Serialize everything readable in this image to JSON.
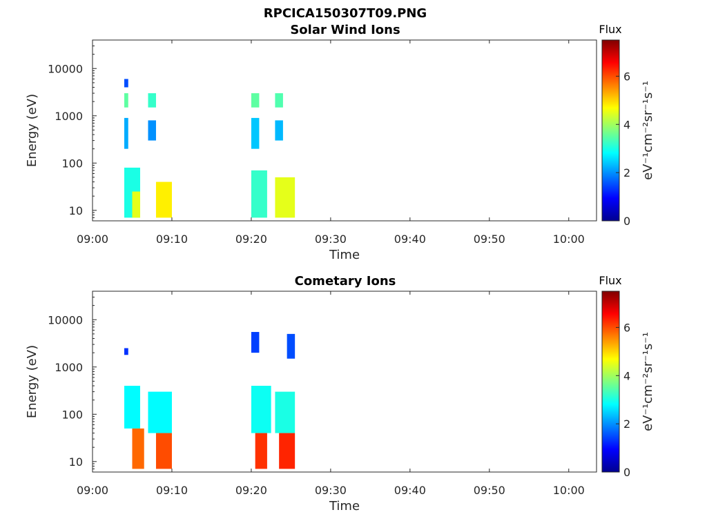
{
  "figure_title": "RPCICA150307T09.PNG",
  "chart_data": [
    {
      "type": "heatmap",
      "title": "Solar Wind Ions",
      "xlabel": "Time",
      "ylabel": "Energy (eV)",
      "x_ticks": [
        "09:00",
        "09:10",
        "09:20",
        "09:30",
        "09:40",
        "09:50",
        "10:00"
      ],
      "xlim_minutes": [
        0,
        63.5
      ],
      "y_scale": "log",
      "ylim": [
        6,
        40000
      ],
      "y_ticks": [
        "10",
        "100",
        "1000",
        "10000"
      ],
      "colorbar": {
        "title": "Flux",
        "unit_label": "eV⁻¹cm⁻²sr⁻¹s⁻¹",
        "range": [
          0,
          7.5
        ],
        "ticks": [
          "0",
          "2",
          "4",
          "6"
        ],
        "colormap": "jet"
      },
      "grid": false,
      "cells": [
        {
          "t_min": 4.0,
          "t_max": 6.0,
          "e_min": 7,
          "e_max": 80,
          "flux": 3.0
        },
        {
          "t_min": 5.0,
          "t_max": 6.0,
          "e_min": 7,
          "e_max": 25,
          "flux": 4.5
        },
        {
          "t_min": 4.0,
          "t_max": 4.5,
          "e_min": 200,
          "e_max": 900,
          "flux": 2.2
        },
        {
          "t_min": 4.0,
          "t_max": 4.5,
          "e_min": 1500,
          "e_max": 3000,
          "flux": 3.5
        },
        {
          "t_min": 4.0,
          "t_max": 4.5,
          "e_min": 4000,
          "e_max": 6000,
          "flux": 1.5
        },
        {
          "t_min": 7.0,
          "t_max": 8.0,
          "e_min": 300,
          "e_max": 800,
          "flux": 2.0
        },
        {
          "t_min": 7.0,
          "t_max": 8.0,
          "e_min": 1500,
          "e_max": 3000,
          "flux": 3.2
        },
        {
          "t_min": 8.0,
          "t_max": 10.0,
          "e_min": 7,
          "e_max": 40,
          "flux": 4.8
        },
        {
          "t_min": 20.0,
          "t_max": 22.0,
          "e_min": 7,
          "e_max": 70,
          "flux": 3.2
        },
        {
          "t_min": 20.0,
          "t_max": 21.0,
          "e_min": 200,
          "e_max": 900,
          "flux": 2.4
        },
        {
          "t_min": 20.0,
          "t_max": 21.0,
          "e_min": 1500,
          "e_max": 3000,
          "flux": 3.5
        },
        {
          "t_min": 23.0,
          "t_max": 25.5,
          "e_min": 7,
          "e_max": 50,
          "flux": 4.5
        },
        {
          "t_min": 23.0,
          "t_max": 24.0,
          "e_min": 300,
          "e_max": 800,
          "flux": 2.3
        },
        {
          "t_min": 23.0,
          "t_max": 24.0,
          "e_min": 1500,
          "e_max": 3000,
          "flux": 3.4
        }
      ]
    },
    {
      "type": "heatmap",
      "title": "Cometary Ions",
      "xlabel": "Time",
      "ylabel": "Energy (eV)",
      "x_ticks": [
        "09:00",
        "09:10",
        "09:20",
        "09:30",
        "09:40",
        "09:50",
        "10:00"
      ],
      "xlim_minutes": [
        0,
        63.5
      ],
      "y_scale": "log",
      "ylim": [
        6,
        40000
      ],
      "y_ticks": [
        "10",
        "100",
        "1000",
        "10000"
      ],
      "colorbar": {
        "title": "Flux",
        "unit_label": "eV⁻¹cm⁻²sr⁻¹s⁻¹",
        "range": [
          0,
          7.5
        ],
        "ticks": [
          "0",
          "2",
          "4",
          "6"
        ],
        "colormap": "jet"
      },
      "grid": false,
      "cells": [
        {
          "t_min": 4.0,
          "t_max": 6.0,
          "e_min": 50,
          "e_max": 400,
          "flux": 2.8
        },
        {
          "t_min": 5.0,
          "t_max": 6.5,
          "e_min": 7,
          "e_max": 50,
          "flux": 5.8
        },
        {
          "t_min": 7.0,
          "t_max": 10.0,
          "e_min": 40,
          "e_max": 300,
          "flux": 2.8
        },
        {
          "t_min": 8.0,
          "t_max": 10.0,
          "e_min": 7,
          "e_max": 40,
          "flux": 6.0
        },
        {
          "t_min": 4.0,
          "t_max": 4.5,
          "e_min": 1800,
          "e_max": 2500,
          "flux": 1.3
        },
        {
          "t_min": 20.0,
          "t_max": 22.5,
          "e_min": 40,
          "e_max": 400,
          "flux": 2.9
        },
        {
          "t_min": 20.5,
          "t_max": 22.0,
          "e_min": 7,
          "e_max": 40,
          "flux": 6.2
        },
        {
          "t_min": 23.0,
          "t_max": 25.5,
          "e_min": 40,
          "e_max": 300,
          "flux": 3.0
        },
        {
          "t_min": 23.5,
          "t_max": 25.5,
          "e_min": 7,
          "e_max": 40,
          "flux": 6.3
        },
        {
          "t_min": 20.0,
          "t_max": 21.0,
          "e_min": 2000,
          "e_max": 5500,
          "flux": 1.4
        },
        {
          "t_min": 24.5,
          "t_max": 25.5,
          "e_min": 1500,
          "e_max": 5000,
          "flux": 1.5
        }
      ]
    }
  ]
}
